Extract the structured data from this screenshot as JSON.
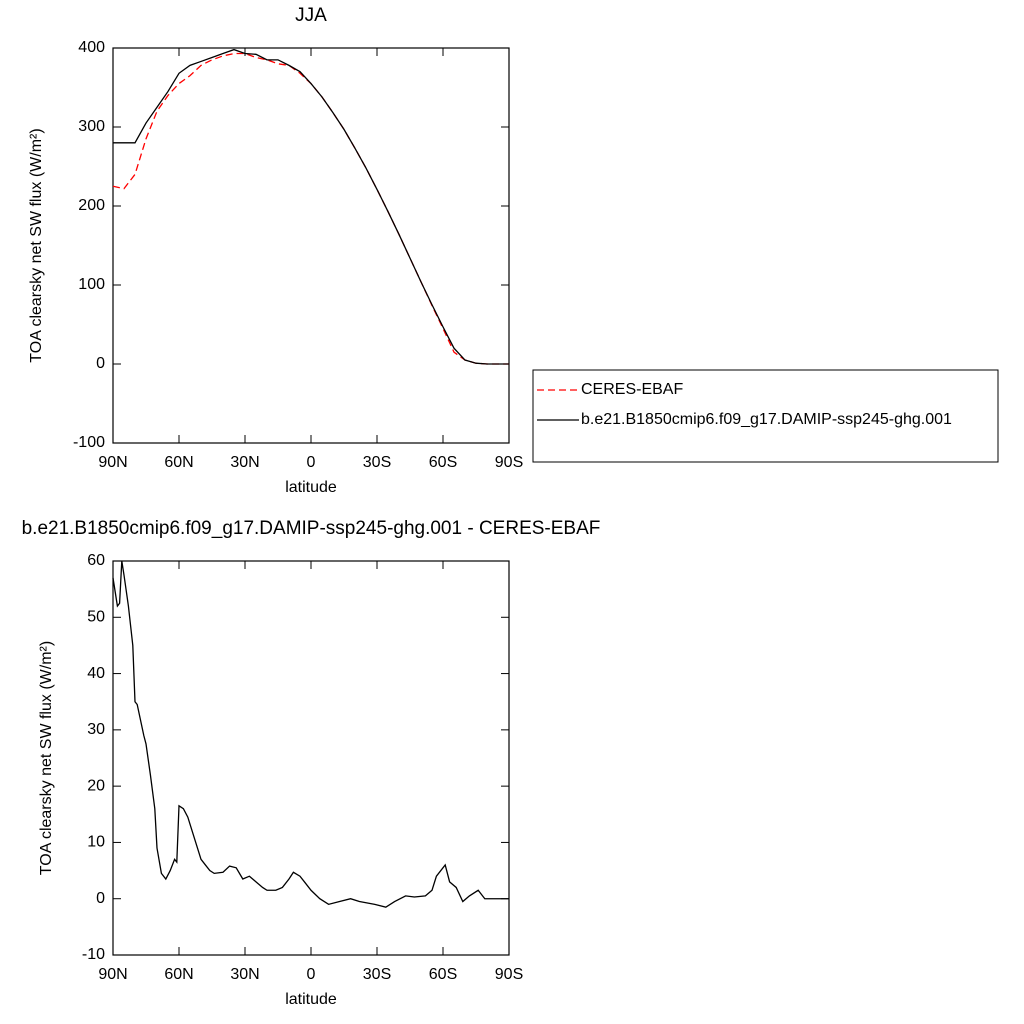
{
  "chart_data": [
    {
      "type": "line",
      "title": "JJA",
      "xlabel": "latitude",
      "ylabel": "TOA clearsky net SW flux (W/m²)",
      "x": [
        90,
        85,
        80,
        75,
        70,
        65,
        60,
        55,
        50,
        45,
        40,
        35,
        30,
        25,
        20,
        15,
        10,
        5,
        0,
        -5,
        -10,
        -15,
        -20,
        -25,
        -30,
        -35,
        -40,
        -45,
        -50,
        -55,
        -60,
        -65,
        -70,
        -75,
        -80,
        -85,
        -90
      ],
      "series": [
        {
          "name": "CERES-EBAF",
          "color": "#ff0000",
          "dash": "dashed",
          "values": [
            225,
            222,
            240,
            285,
            320,
            340,
            355,
            365,
            378,
            385,
            390,
            393,
            393,
            388,
            385,
            380,
            378,
            368,
            355,
            338,
            318,
            297,
            273,
            248,
            221,
            193,
            164,
            134,
            104,
            74,
            45,
            15,
            5,
            1,
            0,
            0,
            0
          ]
        },
        {
          "name": "b.e21.B1850cmip6.f09_g17.DAMIP-ssp245-ghg.001",
          "color": "#000000",
          "dash": "solid",
          "values": [
            280,
            280,
            280,
            305,
            325,
            345,
            368,
            378,
            383,
            388,
            393,
            398,
            393,
            392,
            385,
            385,
            378,
            370,
            355,
            338,
            318,
            297,
            273,
            248,
            221,
            193,
            164,
            134,
            104,
            75,
            47,
            20,
            5,
            1,
            0,
            0,
            0
          ]
        }
      ],
      "xlim": [
        90,
        -90
      ],
      "xticks": [
        {
          "value": 90,
          "label": "90N"
        },
        {
          "value": 60,
          "label": "60N"
        },
        {
          "value": 30,
          "label": "30N"
        },
        {
          "value": 0,
          "label": "0"
        },
        {
          "value": -30,
          "label": "30S"
        },
        {
          "value": -60,
          "label": "60S"
        },
        {
          "value": -90,
          "label": "90S"
        }
      ],
      "ylim": [
        -100,
        400
      ],
      "yticks": [
        -100,
        0,
        100,
        200,
        300,
        400
      ]
    },
    {
      "type": "line",
      "title": "b.e21.B1850cmip6.f09_g17.DAMIP-ssp245-ghg.001 - CERES-EBAF",
      "xlabel": "latitude",
      "ylabel": "TOA clearsky net SW flux (W/m²)",
      "x": [
        90,
        88,
        87,
        86,
        85,
        83,
        81,
        80,
        79,
        76,
        75,
        73,
        71,
        70,
        68,
        66,
        64,
        62,
        61,
        60,
        58,
        56,
        54,
        50,
        48,
        46,
        44,
        40,
        37,
        34,
        31,
        28,
        25,
        22,
        20,
        16,
        13,
        10,
        8,
        5,
        3,
        0,
        -4,
        -8,
        -13,
        -18,
        -22,
        -29,
        -34,
        -38,
        -43,
        -47,
        -52,
        -55,
        -57,
        -61,
        -63,
        -66,
        -69,
        -72,
        -76,
        -79,
        -90
      ],
      "color": "#000000",
      "values": [
        57,
        52,
        52.5,
        60,
        57.5,
        52,
        45,
        35,
        34.5,
        29,
        27.5,
        22,
        16,
        9,
        4.5,
        3.5,
        5,
        7,
        6.5,
        16.5,
        16,
        14.5,
        12,
        7,
        6,
        5,
        4.5,
        4.7,
        5.8,
        5.5,
        3.5,
        4,
        3,
        2,
        1.5,
        1.5,
        2,
        3.5,
        4.7,
        4,
        3,
        1.5,
        0,
        -1,
        -0.5,
        0,
        -0.5,
        -1,
        -1.5,
        -0.5,
        0.5,
        0.3,
        0.5,
        1.5,
        4,
        6,
        3,
        2,
        -0.5,
        0.5,
        1.5,
        0,
        0
      ],
      "xlim": [
        90,
        -90
      ],
      "xticks": [
        {
          "value": 90,
          "label": "90N"
        },
        {
          "value": 60,
          "label": "60N"
        },
        {
          "value": 30,
          "label": "30N"
        },
        {
          "value": 0,
          "label": "0"
        },
        {
          "value": -30,
          "label": "30S"
        },
        {
          "value": -60,
          "label": "60S"
        },
        {
          "value": -90,
          "label": "90S"
        }
      ],
      "ylim": [
        -10,
        60
      ],
      "yticks": [
        -10,
        0,
        10,
        20,
        30,
        40,
        50,
        60
      ]
    }
  ]
}
